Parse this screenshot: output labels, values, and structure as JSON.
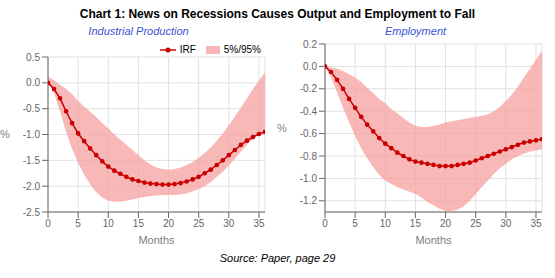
{
  "title": "Chart 1: News on Recessions Causes Output and Employment to Fall",
  "annotation": "Source: Paper, page 29",
  "chart_data": [
    {
      "type": "line",
      "subtitle": "Industrial Production",
      "xlabel": "Months",
      "ylabel": "%",
      "x": [
        0,
        1,
        2,
        3,
        4,
        5,
        6,
        7,
        8,
        9,
        10,
        11,
        12,
        13,
        14,
        15,
        16,
        17,
        18,
        19,
        20,
        21,
        22,
        23,
        24,
        25,
        26,
        27,
        28,
        29,
        30,
        31,
        32,
        33,
        34,
        35,
        36
      ],
      "series": [
        {
          "name": "IRF",
          "type": "line",
          "color": "#cc0000",
          "marker": "circle",
          "values": [
            0.0,
            -0.12,
            -0.3,
            -0.55,
            -0.78,
            -0.98,
            -1.13,
            -1.27,
            -1.4,
            -1.52,
            -1.62,
            -1.7,
            -1.76,
            -1.82,
            -1.87,
            -1.9,
            -1.93,
            -1.95,
            -1.96,
            -1.97,
            -1.97,
            -1.96,
            -1.94,
            -1.91,
            -1.87,
            -1.82,
            -1.75,
            -1.68,
            -1.59,
            -1.5,
            -1.4,
            -1.3,
            -1.2,
            -1.12,
            -1.05,
            -0.99,
            -0.95
          ]
        },
        {
          "name": "5%/95%",
          "type": "band",
          "color": "#f5a0a0",
          "lower": [
            0.05,
            -0.2,
            -0.55,
            -0.95,
            -1.28,
            -1.55,
            -1.78,
            -1.97,
            -2.12,
            -2.22,
            -2.28,
            -2.3,
            -2.3,
            -2.28,
            -2.26,
            -2.23,
            -2.21,
            -2.19,
            -2.18,
            -2.17,
            -2.17,
            -2.17,
            -2.16,
            -2.14,
            -2.1,
            -2.06,
            -2.0,
            -1.92,
            -1.82,
            -1.72,
            -1.6,
            -1.47,
            -1.33,
            -1.2,
            -1.08,
            -0.98,
            -0.9
          ],
          "upper": [
            0.12,
            0.05,
            -0.04,
            -0.12,
            -0.22,
            -0.35,
            -0.46,
            -0.56,
            -0.66,
            -0.78,
            -0.88,
            -1.0,
            -1.1,
            -1.2,
            -1.3,
            -1.4,
            -1.5,
            -1.58,
            -1.64,
            -1.67,
            -1.68,
            -1.67,
            -1.64,
            -1.59,
            -1.53,
            -1.45,
            -1.36,
            -1.25,
            -1.12,
            -0.98,
            -0.82,
            -0.65,
            -0.48,
            -0.3,
            -0.12,
            0.05,
            0.2
          ]
        }
      ],
      "xlim": [
        0,
        36
      ],
      "xticks": [
        0,
        5,
        10,
        15,
        20,
        25,
        30,
        35
      ],
      "ylim": [
        -2.5,
        0.5
      ],
      "yticks": [
        0.5,
        {
          "value": 0,
          "label": "0.0"
        },
        -0.5,
        {
          "value": -1,
          "label": "-1.0"
        },
        -1.5,
        {
          "value": -2,
          "label": "-2.0"
        },
        -2.5
      ],
      "grid": true,
      "legend": "upper right"
    },
    {
      "type": "line",
      "subtitle": "Employment",
      "xlabel": "Months",
      "ylabel": "%",
      "x": [
        0,
        1,
        2,
        3,
        4,
        5,
        6,
        7,
        8,
        9,
        10,
        11,
        12,
        13,
        14,
        15,
        16,
        17,
        18,
        19,
        20,
        21,
        22,
        23,
        24,
        25,
        26,
        27,
        28,
        29,
        30,
        31,
        32,
        33,
        34,
        35,
        36
      ],
      "series": [
        {
          "name": "IRF",
          "type": "line",
          "color": "#cc0000",
          "marker": "circle",
          "values": [
            0.0,
            -0.05,
            -0.12,
            -0.2,
            -0.29,
            -0.37,
            -0.45,
            -0.52,
            -0.58,
            -0.64,
            -0.69,
            -0.73,
            -0.77,
            -0.8,
            -0.83,
            -0.85,
            -0.86,
            -0.87,
            -0.88,
            -0.89,
            -0.89,
            -0.89,
            -0.88,
            -0.87,
            -0.86,
            -0.84,
            -0.82,
            -0.8,
            -0.78,
            -0.76,
            -0.74,
            -0.72,
            -0.7,
            -0.68,
            -0.67,
            -0.66,
            -0.65
          ]
        },
        {
          "name": "5%/95%",
          "type": "band",
          "color": "#f5a0a0",
          "lower": [
            0.0,
            -0.1,
            -0.23,
            -0.37,
            -0.5,
            -0.62,
            -0.73,
            -0.82,
            -0.9,
            -0.97,
            -1.02,
            -1.05,
            -1.08,
            -1.1,
            -1.12,
            -1.14,
            -1.17,
            -1.21,
            -1.24,
            -1.27,
            -1.29,
            -1.29,
            -1.28,
            -1.25,
            -1.2,
            -1.14,
            -1.08,
            -1.02,
            -0.96,
            -0.91,
            -0.87,
            -0.83,
            -0.8,
            -0.78,
            -0.76,
            -0.75,
            -0.74
          ],
          "upper": [
            0.0,
            -0.01,
            -0.02,
            -0.04,
            -0.07,
            -0.1,
            -0.14,
            -0.19,
            -0.24,
            -0.29,
            -0.33,
            -0.38,
            -0.42,
            -0.46,
            -0.5,
            -0.53,
            -0.54,
            -0.54,
            -0.53,
            -0.52,
            -0.5,
            -0.49,
            -0.48,
            -0.47,
            -0.46,
            -0.45,
            -0.44,
            -0.43,
            -0.4,
            -0.36,
            -0.31,
            -0.25,
            -0.18,
            -0.1,
            -0.02,
            0.06,
            0.14
          ]
        }
      ],
      "xlim": [
        0,
        36
      ],
      "xticks": [
        0,
        5,
        10,
        15,
        20,
        25,
        30,
        35
      ],
      "ylim": [
        -1.3,
        0.2
      ],
      "yticks": [
        0.2,
        {
          "value": 0,
          "label": "0.0"
        },
        -0.2,
        -0.4,
        -0.6,
        -0.8,
        {
          "value": -1,
          "label": "-1.0"
        },
        -1.2
      ],
      "grid": true
    }
  ]
}
